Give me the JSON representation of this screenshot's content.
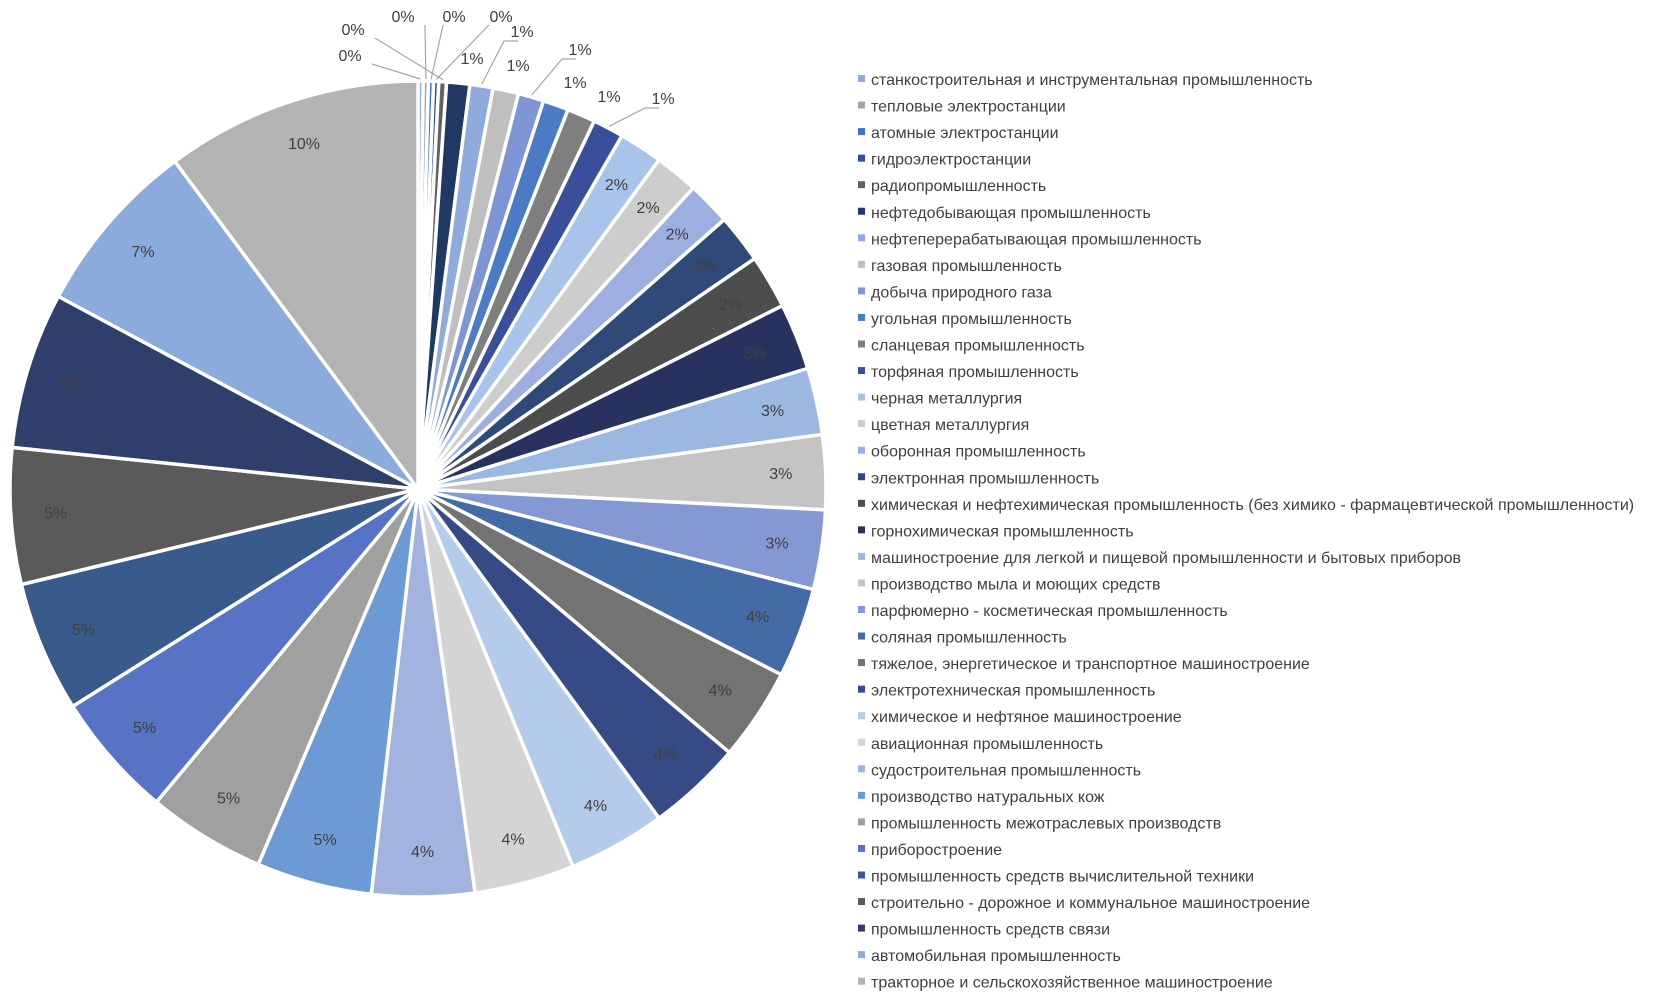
{
  "chart_data": {
    "type": "pie",
    "title": "",
    "legend_position": "right",
    "slices": [
      {
        "label": "станкостроительная и инструментальная промышленность",
        "value": 0.2,
        "display": "0%",
        "color": "#8faadc"
      },
      {
        "label": "тепловые электростанции",
        "value": 0.2,
        "display": "0%",
        "color": "#a5a5a5"
      },
      {
        "label": "атомные электростанции",
        "value": 0.2,
        "display": "0%",
        "color": "#4472c4"
      },
      {
        "label": "гидроэлектростанции",
        "value": 0.2,
        "display": "0%",
        "color": "#2f528f"
      },
      {
        "label": "радиопромышленность",
        "value": 0.3,
        "display": "0%",
        "color": "#636363"
      },
      {
        "label": "нефтедобывающая промышленность",
        "value": 0.9,
        "display": "1%",
        "color": "#1f3864"
      },
      {
        "label": "нефтеперерабатывающая промышленность",
        "value": 0.9,
        "display": "1%",
        "color": "#8faadc"
      },
      {
        "label": "газовая промышленность",
        "value": 1.0,
        "display": "1%",
        "color": "#bfbfbf"
      },
      {
        "label": "добыча природного газа",
        "value": 1.0,
        "display": "1%",
        "color": "#7f96d6"
      },
      {
        "label": "угольная промышленность",
        "value": 1.0,
        "display": "1%",
        "color": "#4a7bc4"
      },
      {
        "label": "сланцевая промышленность",
        "value": 1.1,
        "display": "1%",
        "color": "#7f7f7f"
      },
      {
        "label": "торфяная промышленность",
        "value": 1.2,
        "display": "1%",
        "color": "#3a4f9c"
      },
      {
        "label": "черная металлургия",
        "value": 1.7,
        "display": "2%",
        "color": "#a9c4ea"
      },
      {
        "label": "цветная металлургия",
        "value": 1.7,
        "display": "2%",
        "color": "#cdcdcd"
      },
      {
        "label": "оборонная промышленность",
        "value": 1.7,
        "display": "2%",
        "color": "#9daee0"
      },
      {
        "label": "электронная промышленность",
        "value": 1.9,
        "display": "2%",
        "color": "#2f4a78"
      },
      {
        "label": "химическая и нефтехимическая промышленность (без химико - фармацевтической промышленности)",
        "value": 2.1,
        "display": "2%",
        "color": "#4d4d4d"
      },
      {
        "label": "горнохимическая промышленность",
        "value": 2.6,
        "display": "3%",
        "color": "#27335e"
      },
      {
        "label": "машиностроение для легкой и пищевой промышленности и бытовых приборов",
        "value": 2.6,
        "display": "3%",
        "color": "#9ab8e2"
      },
      {
        "label": "производство мыла и моющих средств",
        "value": 2.9,
        "display": "3%",
        "color": "#c4c4c4"
      },
      {
        "label": "парфюмерно - косметическая промышленность",
        "value": 3.1,
        "display": "3%",
        "color": "#8499d4"
      },
      {
        "label": "соляная промышленность",
        "value": 3.5,
        "display": "4%",
        "color": "#456ba6"
      },
      {
        "label": "тяжелое, энергетическое и транспортное машиностроение",
        "value": 3.6,
        "display": "4%",
        "color": "#737373"
      },
      {
        "label": "электротехническая промышленность",
        "value": 3.7,
        "display": "4%",
        "color": "#364b85"
      },
      {
        "label": "химическое и нефтяное машиностроение",
        "value": 3.8,
        "display": "4%",
        "color": "#b4cbe9"
      },
      {
        "label": "авиационная промышленность",
        "value": 3.9,
        "display": "4%",
        "color": "#d4d4d4"
      },
      {
        "label": "судостроительная промышленность",
        "value": 4.0,
        "display": "4%",
        "color": "#a3b3df"
      },
      {
        "label": "производство натуральных кож",
        "value": 4.5,
        "display": "5%",
        "color": "#6b9ad4"
      },
      {
        "label": "промышленность межотраслевых производств",
        "value": 4.6,
        "display": "5%",
        "color": "#a0a0a0"
      },
      {
        "label": "приборостроение",
        "value": 4.9,
        "display": "5%",
        "color": "#5673c6"
      },
      {
        "label": "промышленность средств вычислительной техники",
        "value": 5.1,
        "display": "5%",
        "color": "#395a8c"
      },
      {
        "label": "строительно - дорожное и коммунальное машиностроение",
        "value": 5.3,
        "display": "5%",
        "color": "#5a5a5a"
      },
      {
        "label": "промышленность средств связи",
        "value": 6.1,
        "display": "6%",
        "color": "#303e6c"
      },
      {
        "label": "автомобильная промышленность",
        "value": 6.9,
        "display": "7%",
        "color": "#8aabdb"
      },
      {
        "label": "тракторное и сельскохозяйственное машиностроение",
        "value": 10.0,
        "display": "10%",
        "color": "#b3b3b3"
      }
    ]
  }
}
